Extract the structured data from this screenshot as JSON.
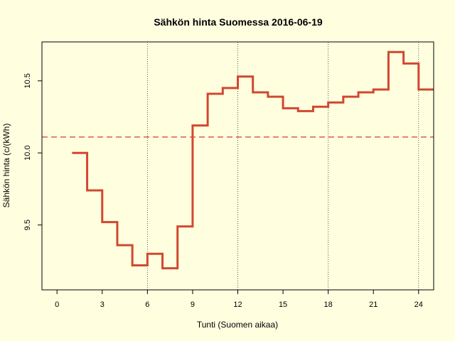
{
  "chart_data": {
    "type": "line",
    "step": true,
    "title": "Sähkön hinta Suomessa 2016-06-19",
    "xlabel": "Tunti (Suomen aikaa)",
    "ylabel": "Sähkön hinta (c/(kWh)",
    "xlim": [
      -1,
      25
    ],
    "ylim": [
      9.05,
      10.77
    ],
    "x_ticks": [
      "0",
      "3",
      "6",
      "9",
      "12",
      "15",
      "18",
      "21",
      "24"
    ],
    "y_ticks": [
      "9.5",
      "10.0",
      "10.5"
    ],
    "vlines": [
      6,
      12,
      18,
      24
    ],
    "mean_line": 10.11,
    "x": [
      1,
      2,
      3,
      4,
      5,
      6,
      7,
      8,
      9,
      10,
      11,
      12,
      13,
      14,
      15,
      16,
      17,
      18,
      19,
      20,
      21,
      22,
      23,
      24
    ],
    "values": [
      10.0,
      9.74,
      9.52,
      9.36,
      9.22,
      9.3,
      9.2,
      9.49,
      10.19,
      10.41,
      10.45,
      10.53,
      10.42,
      10.39,
      10.31,
      10.29,
      10.32,
      10.35,
      10.39,
      10.42,
      10.44,
      10.7,
      10.62,
      10.44
    ],
    "line_color": "#d2472f",
    "mean_color": "#e05a4a",
    "vline_color": "#333333"
  }
}
